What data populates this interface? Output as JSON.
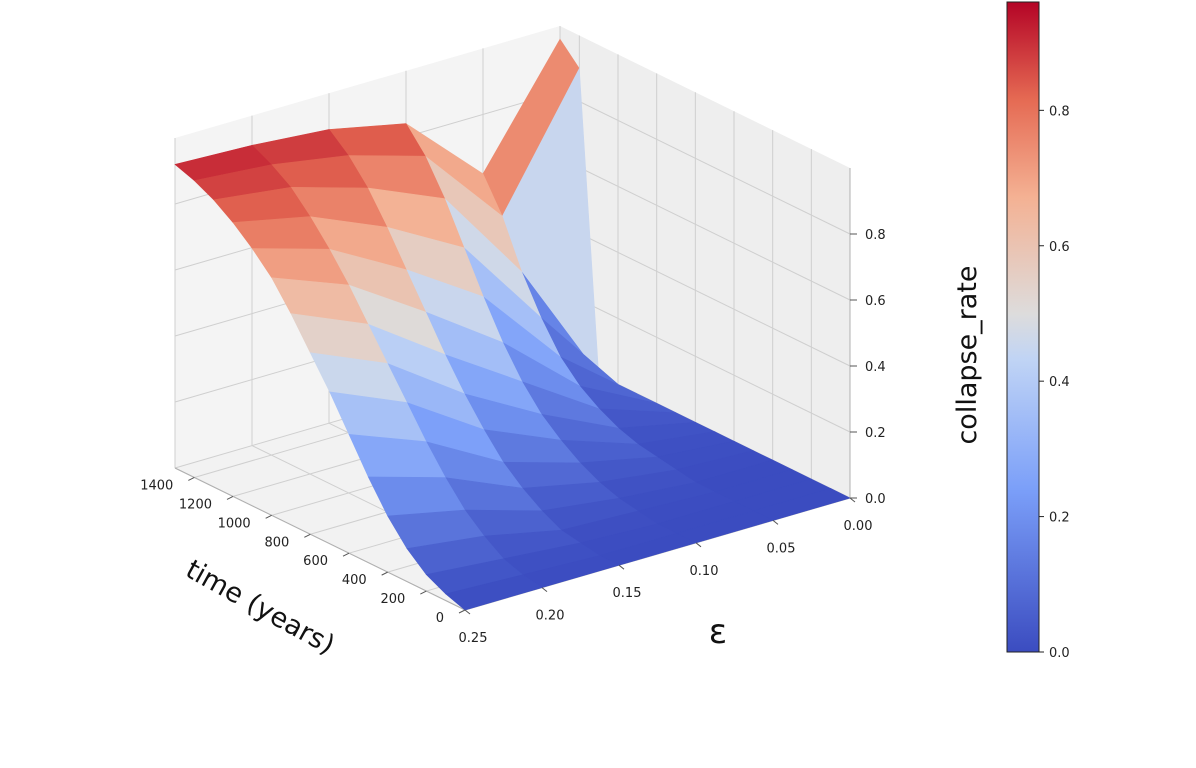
{
  "chart_data": {
    "type": "surface3d",
    "colormap": "coolwarm",
    "xlabel": "time (years)",
    "ylabel": "ε",
    "zlabel": "collapse_rate",
    "x_ticks": [
      "0",
      "200",
      "400",
      "600",
      "800",
      "1000",
      "1200",
      "1400"
    ],
    "y_ticks": [
      "0.25",
      "0.20",
      "0.15",
      "0.10",
      "0.05",
      "0.00"
    ],
    "z_ticks": [
      "0.0",
      "0.2",
      "0.4",
      "0.6",
      "0.8"
    ],
    "colorbar_ticks": [
      "0.0",
      "0.2",
      "0.4",
      "0.6",
      "0.8"
    ],
    "xlim": [
      0,
      1500
    ],
    "ylim": [
      0,
      0.25
    ],
    "zlim": [
      0,
      1.0
    ],
    "colorbar_range": [
      0,
      0.96
    ],
    "grid": true,
    "epsilon": [
      0.25,
      0.2,
      0.15,
      0.1,
      0.05,
      0.0
    ],
    "time": [
      0,
      100,
      200,
      300,
      400,
      500,
      600,
      700,
      800,
      900,
      1000,
      1100,
      1200,
      1300,
      1400,
      1500
    ],
    "collapse_rate": [
      [
        0.0,
        0.02,
        0.05,
        0.1,
        0.17,
        0.26,
        0.36,
        0.46,
        0.55,
        0.64,
        0.72,
        0.78,
        0.83,
        0.87,
        0.9,
        0.92
      ],
      [
        0.0,
        0.01,
        0.03,
        0.07,
        0.12,
        0.19,
        0.27,
        0.36,
        0.45,
        0.54,
        0.63,
        0.71,
        0.78,
        0.84,
        0.88,
        0.91
      ],
      [
        0.0,
        0.0,
        0.01,
        0.02,
        0.05,
        0.09,
        0.14,
        0.21,
        0.29,
        0.38,
        0.48,
        0.58,
        0.68,
        0.77,
        0.84,
        0.89
      ],
      [
        0.0,
        0.0,
        0.0,
        0.01,
        0.02,
        0.04,
        0.07,
        0.11,
        0.16,
        0.23,
        0.32,
        0.43,
        0.55,
        0.67,
        0.77,
        0.84
      ],
      [
        0.0,
        0.0,
        0.0,
        0.0,
        0.0,
        0.01,
        0.02,
        0.03,
        0.05,
        0.08,
        0.12,
        0.18,
        0.27,
        0.38,
        0.52,
        0.62
      ],
      [
        0.0,
        0.0,
        0.0,
        0.0,
        0.0,
        0.0,
        0.0,
        0.0,
        0.0,
        0.0,
        0.0,
        0.0,
        0.0,
        0.0,
        0.9,
        0.96
      ]
    ]
  }
}
